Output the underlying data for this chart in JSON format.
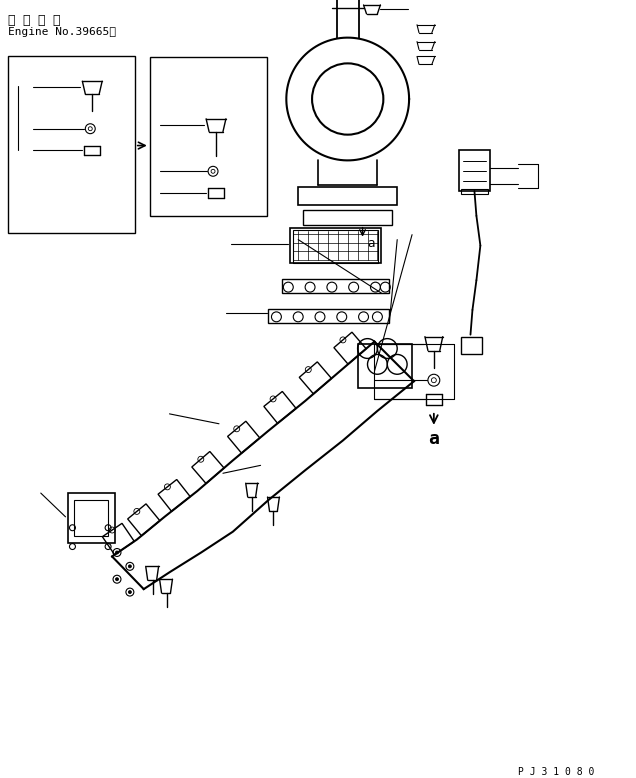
{
  "title_line1": "適 用 号 機",
  "title_line2": "Engine No.39665～",
  "code": "P J 3 1 0 8 0",
  "label_a": "a",
  "bg_color": "#ffffff",
  "line_color": "#000000",
  "figsize": [
    6.36,
    7.78
  ],
  "dpi": 100
}
